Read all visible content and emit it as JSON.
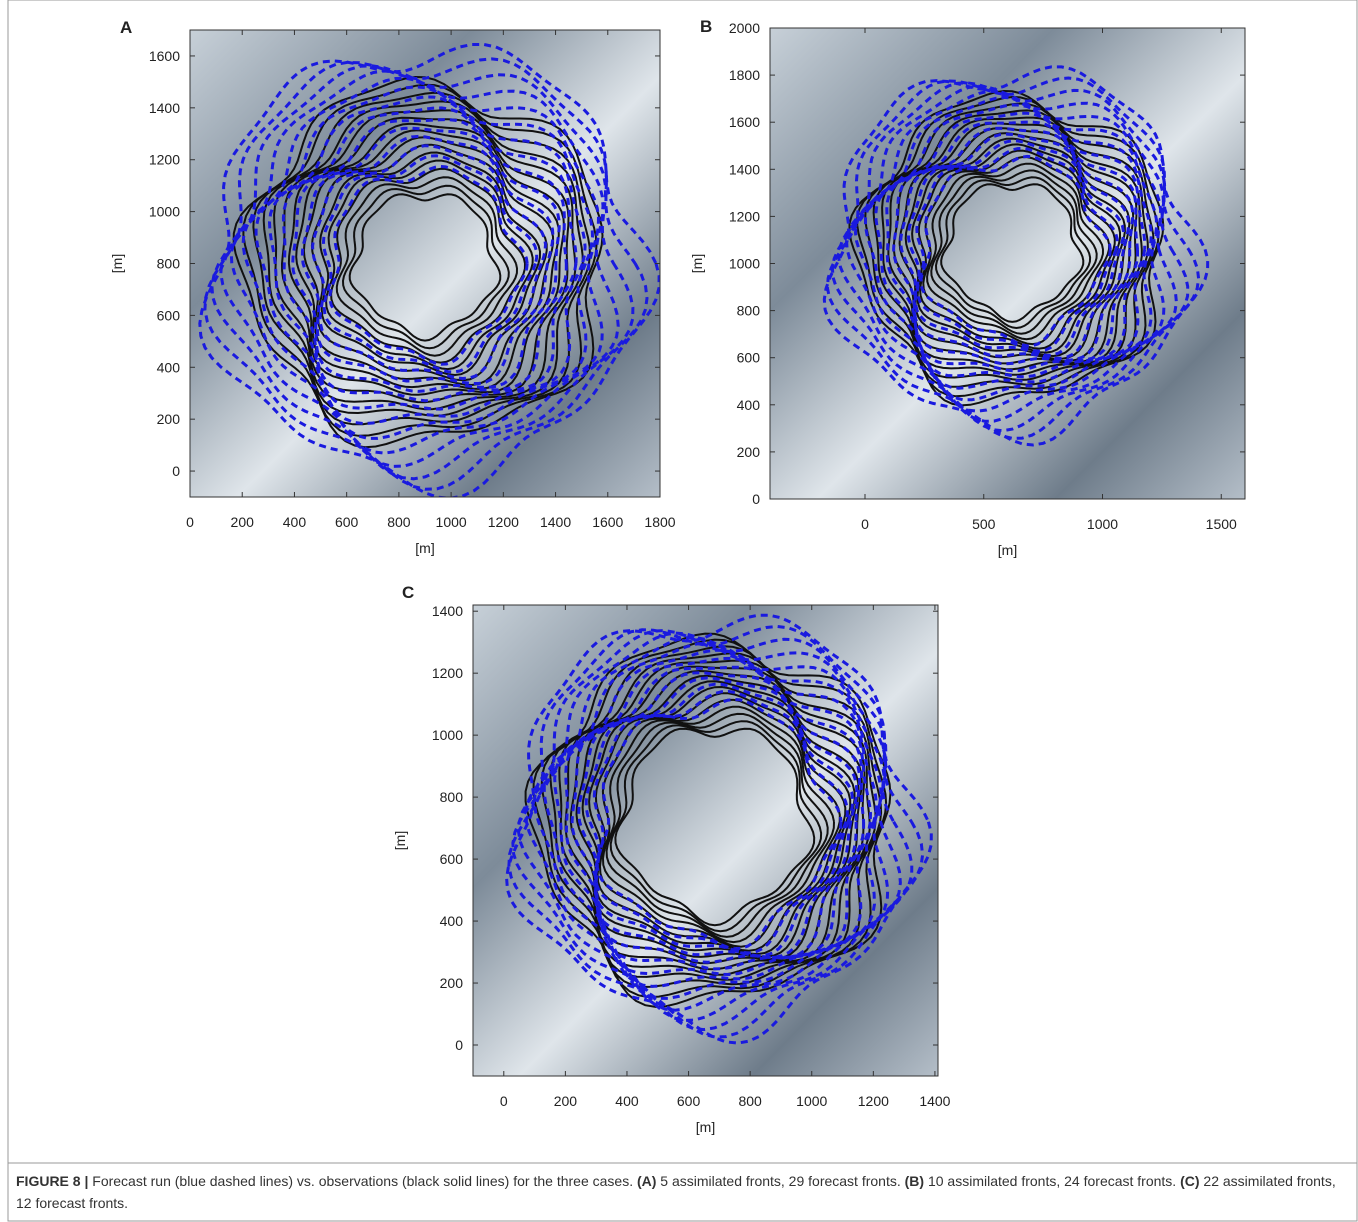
{
  "chart_data": [
    {
      "type": "contour",
      "panel_label": "A",
      "xlabel": "[m]",
      "ylabel": "[m]",
      "xlim": [
        0,
        1800
      ],
      "ylim": [
        -100,
        1700
      ],
      "xticks": [
        0,
        200,
        400,
        600,
        800,
        1000,
        1200,
        1400,
        1600,
        1800
      ],
      "yticks": [
        0,
        200,
        400,
        600,
        800,
        1000,
        1200,
        1400,
        1600
      ]
    },
    {
      "type": "contour",
      "panel_label": "B",
      "xlabel": "[m]",
      "ylabel": "[m]",
      "xlim": [
        -400,
        1600
      ],
      "ylim": [
        0,
        2000
      ],
      "xticks": [
        0,
        500,
        1000,
        1500
      ],
      "yticks": [
        0,
        200,
        400,
        600,
        800,
        1000,
        1200,
        1400,
        1600,
        1800,
        2000
      ]
    },
    {
      "type": "contour",
      "panel_label": "C",
      "xlabel": "[m]",
      "ylabel": "[m]",
      "xlim": [
        -100,
        1410
      ],
      "ylim": [
        -100,
        1420
      ],
      "xticks": [
        0,
        200,
        400,
        600,
        800,
        1000,
        1200,
        1400
      ],
      "yticks": [
        0,
        200,
        400,
        600,
        800,
        1000,
        1200,
        1400
      ]
    }
  ],
  "caption": {
    "figure": "FIGURE 8 |",
    "intro": "Forecast run (blue dashed lines) vs. observations (black solid lines) for the three cases.",
    "items": [
      {
        "label": "(A)",
        "text": "5 assimilated fronts, 29 forecast fronts."
      },
      {
        "label": "(B)",
        "text": "10 assimilated fronts, 24 forecast fronts."
      },
      {
        "label": "(C)",
        "text": "22 assimilated fronts, 12 forecast fronts."
      }
    ]
  }
}
